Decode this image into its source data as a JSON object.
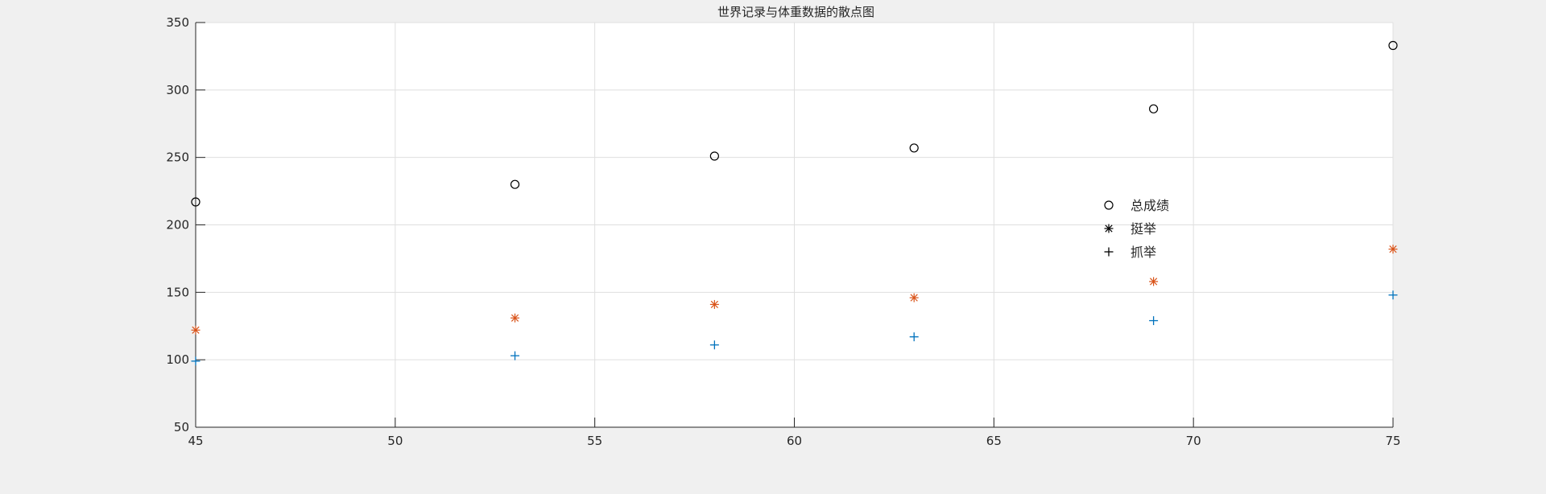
{
  "chart_data": {
    "type": "scatter",
    "title": "世界记录与体重数据的散点图",
    "xlabel": "",
    "ylabel": "",
    "xlim": [
      45,
      75
    ],
    "ylim": [
      50,
      350
    ],
    "x_ticks": [
      45,
      50,
      55,
      60,
      65,
      70,
      75
    ],
    "y_ticks": [
      50,
      100,
      150,
      200,
      250,
      300,
      350
    ],
    "grid": true,
    "legend_position": "right",
    "series": [
      {
        "name": "总成绩",
        "marker": "circle",
        "color": "#000000",
        "x": [
          45,
          53,
          58,
          63,
          69,
          75
        ],
        "y": [
          217,
          230,
          251,
          257,
          286,
          333
        ]
      },
      {
        "name": "挺举",
        "marker": "asterisk",
        "color": "#d95319",
        "x": [
          45,
          53,
          58,
          63,
          69,
          75
        ],
        "y": [
          122,
          131,
          141,
          146,
          158,
          182
        ]
      },
      {
        "name": "抓举",
        "marker": "plus",
        "color": "#0072bd",
        "x": [
          45,
          53,
          58,
          63,
          69,
          75
        ],
        "y": [
          99,
          103,
          111,
          117,
          129,
          148
        ]
      }
    ],
    "legend": {
      "entries": [
        {
          "label": "总成绩",
          "marker": "circle",
          "color": "#000000"
        },
        {
          "label": "挺举",
          "marker": "asterisk",
          "color": "#000000"
        },
        {
          "label": "抓举",
          "marker": "plus",
          "color": "#000000"
        }
      ]
    }
  }
}
